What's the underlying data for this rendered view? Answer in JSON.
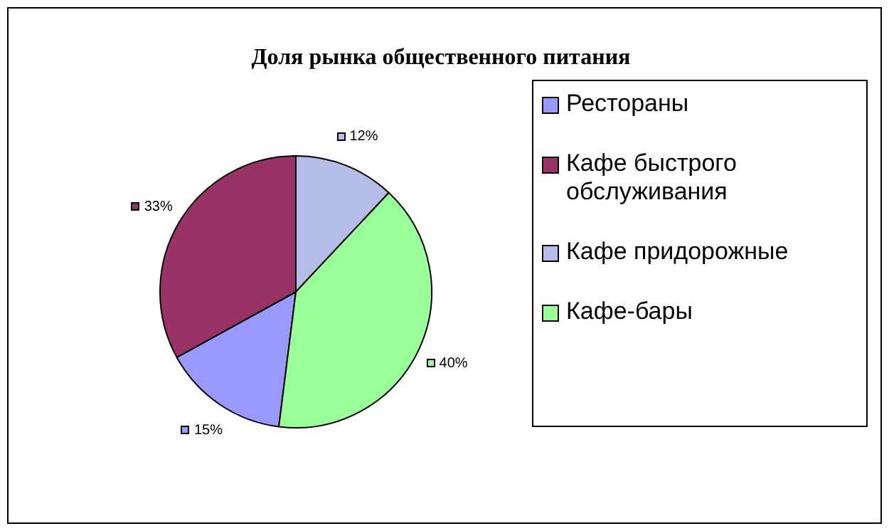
{
  "chart_data": {
    "type": "pie",
    "title": "Доля рынка общественного питания",
    "categories": [
      "Рестораны",
      "Кафе быстрого обслуживания",
      "Кафе придорожные",
      "Кафе-бары"
    ],
    "values": [
      15,
      33,
      12,
      40
    ],
    "colors": [
      "#9999ff",
      "#993366",
      "#b3bde8",
      "#99ff99"
    ],
    "value_labels": [
      "15%",
      "33%",
      "12%",
      "40%"
    ],
    "legend": "right"
  }
}
